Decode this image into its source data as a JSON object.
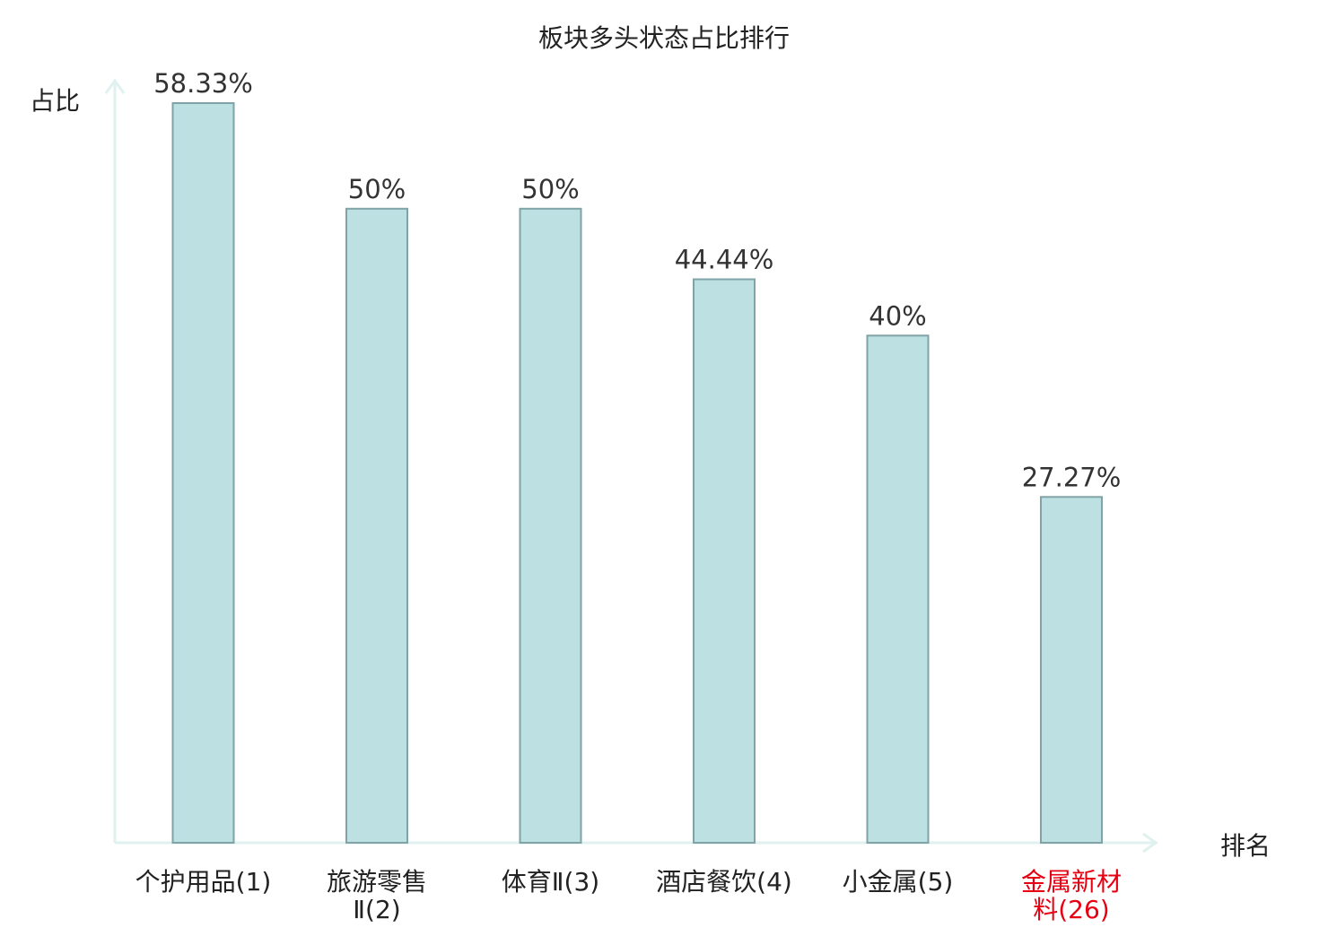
{
  "chart_data": {
    "type": "bar",
    "title": "板块多头状态占比排行",
    "ylabel": "占比",
    "xlabel": "排名",
    "categories": [
      "个护用品(1)",
      "旅游零售\nⅡ(2)",
      "体育Ⅱ(3)",
      "酒店餐饮(4)",
      "小金属(5)",
      "金属新材\n料(26)"
    ],
    "values": [
      58.33,
      50,
      50,
      44.44,
      40,
      27.27
    ],
    "value_labels": [
      "58.33%",
      "50%",
      "50%",
      "44.44%",
      "40%",
      "27.27%"
    ],
    "highlight_index": 5,
    "ylim": [
      0,
      58.33
    ],
    "grid": false,
    "legend": "none"
  },
  "colors": {
    "bar_fill": "#bde0e3",
    "bar_stroke": "#7fa3a6",
    "axis": "#dff2ef",
    "text": "#333333",
    "title_text": "#222222",
    "highlight_text": "#e60012"
  }
}
